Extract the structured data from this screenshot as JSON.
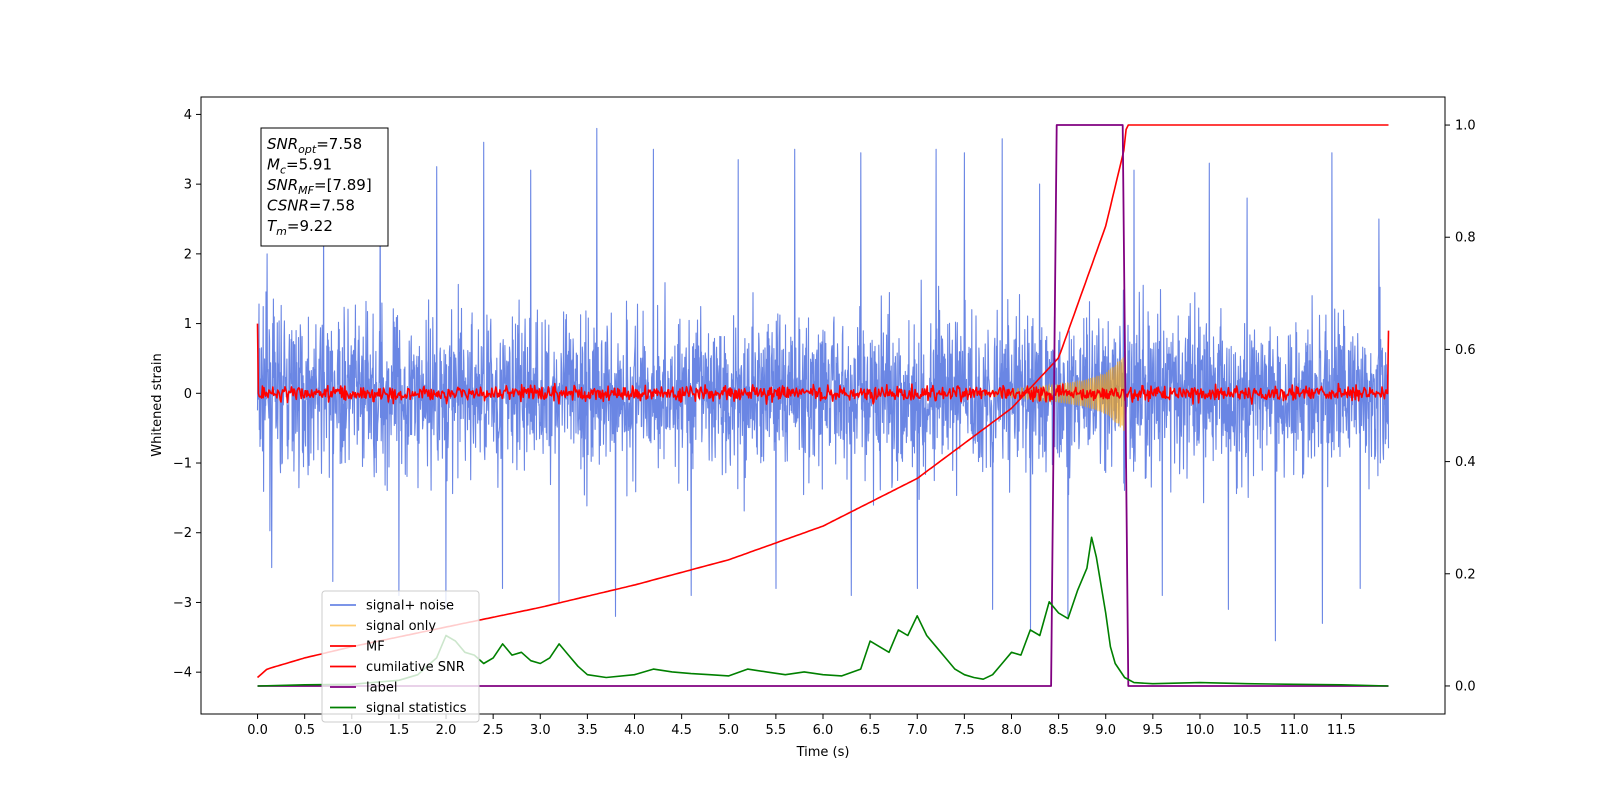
{
  "chart_data": {
    "type": "line",
    "xlabel": "Time (s)",
    "ylabel": "Whitened strain",
    "xlim": [
      -0.6,
      12.6
    ],
    "ylim": [
      -4.6,
      4.25
    ],
    "y2lim": [
      -0.05,
      1.05
    ],
    "x_ticks": [
      0.0,
      0.5,
      1.0,
      1.5,
      2.0,
      2.5,
      3.0,
      3.5,
      4.0,
      4.5,
      5.0,
      5.5,
      6.0,
      6.5,
      7.0,
      7.5,
      8.0,
      8.5,
      9.0,
      9.5,
      10.0,
      10.5,
      11.0,
      11.5
    ],
    "x_tick_labels": [
      "0.0",
      "0.5",
      "1.0",
      "1.5",
      "2.0",
      "2.5",
      "3.0",
      "3.5",
      "4.0",
      "4.5",
      "5.0",
      "5.5",
      "6.0",
      "6.5",
      "7.0",
      "7.5",
      "8.0",
      "8.5",
      "9.0",
      "9.5",
      "10.0",
      "10.5",
      "11.0",
      "11.5"
    ],
    "y_ticks": [
      -4,
      -3,
      -2,
      -1,
      0,
      1,
      2,
      3,
      4
    ],
    "y_tick_labels": [
      "−4",
      "−3",
      "−2",
      "−1",
      "0",
      "1",
      "2",
      "3",
      "4"
    ],
    "y2_ticks": [
      0.0,
      0.2,
      0.4,
      0.6,
      0.8,
      1.0
    ],
    "y2_tick_labels": [
      "0.0",
      "0.2",
      "0.4",
      "0.6",
      "0.8",
      "1.0"
    ],
    "legend_position": "lower-left",
    "series": [
      {
        "name": "signal+ noise",
        "axis": "left",
        "color": "#6a86e4",
        "kind": "noise-band",
        "x_range": [
          0.0,
          12.0
        ],
        "envelope_upper": [
          [
            0.0,
            1.5
          ],
          [
            12.0,
            1.5
          ]
        ],
        "envelope_lower": [
          [
            0.0,
            -1.5
          ],
          [
            12.0,
            -1.5
          ]
        ],
        "peak_spikes": [
          [
            0.1,
            2.0
          ],
          [
            0.7,
            2.6
          ],
          [
            1.3,
            3.45
          ],
          [
            1.9,
            3.25
          ],
          [
            2.4,
            3.6
          ],
          [
            2.9,
            3.2
          ],
          [
            3.6,
            3.8
          ],
          [
            4.2,
            3.5
          ],
          [
            5.1,
            3.35
          ],
          [
            5.7,
            3.5
          ],
          [
            6.4,
            3.45
          ],
          [
            7.2,
            3.5
          ],
          [
            7.5,
            3.45
          ],
          [
            7.9,
            3.65
          ],
          [
            8.3,
            3.0
          ],
          [
            9.3,
            3.2
          ],
          [
            10.1,
            3.3
          ],
          [
            10.5,
            2.8
          ],
          [
            11.4,
            3.45
          ],
          [
            11.9,
            2.5
          ]
        ],
        "trough_spikes": [
          [
            0.15,
            -2.5
          ],
          [
            0.8,
            -2.7
          ],
          [
            1.5,
            -2.9
          ],
          [
            2.0,
            -3.1
          ],
          [
            2.6,
            -2.8
          ],
          [
            3.2,
            -3.0
          ],
          [
            3.8,
            -3.2
          ],
          [
            4.6,
            -2.9
          ],
          [
            5.5,
            -2.8
          ],
          [
            6.3,
            -2.9
          ],
          [
            7.0,
            -2.8
          ],
          [
            7.8,
            -3.1
          ],
          [
            8.2,
            -3.4
          ],
          [
            8.6,
            -3.2
          ],
          [
            9.6,
            -2.9
          ],
          [
            10.3,
            -3.1
          ],
          [
            10.8,
            -3.55
          ],
          [
            11.3,
            -3.3
          ],
          [
            11.7,
            -2.8
          ]
        ]
      },
      {
        "name": "signal only",
        "axis": "left",
        "color": "#ffa500",
        "kind": "chirp",
        "x": [
          7.5,
          8.0,
          8.5,
          8.8,
          9.0,
          9.1,
          9.2
        ],
        "amplitude": [
          0.02,
          0.06,
          0.13,
          0.2,
          0.3,
          0.42,
          0.55
        ]
      },
      {
        "name": "MF",
        "axis": "left",
        "color": "#ff0000",
        "kind": "noise-band",
        "x_range": [
          0.0,
          12.0
        ],
        "envelope_upper": [
          [
            0.0,
            0.15
          ],
          [
            12.0,
            0.15
          ]
        ],
        "envelope_lower": [
          [
            0.0,
            -0.15
          ],
          [
            12.0,
            -0.15
          ]
        ],
        "edge_values": [
          [
            0.0,
            1.0
          ],
          [
            12.0,
            0.9
          ]
        ]
      },
      {
        "name": "cumilative SNR",
        "axis": "right",
        "color": "#ff0000",
        "kind": "line",
        "x": [
          0.0,
          0.1,
          0.5,
          1.0,
          2.0,
          3.0,
          4.0,
          5.0,
          6.0,
          7.0,
          8.0,
          8.5,
          9.0,
          9.2,
          9.22,
          12.0
        ],
        "y": [
          0.015,
          0.03,
          0.05,
          0.07,
          0.105,
          0.14,
          0.18,
          0.225,
          0.285,
          0.37,
          0.495,
          0.585,
          0.82,
          0.96,
          1.0,
          1.0
        ]
      },
      {
        "name": "label",
        "axis": "right",
        "color": "#800080",
        "kind": "step",
        "x": [
          0.0,
          8.42,
          8.48,
          9.18,
          9.24,
          12.0
        ],
        "y": [
          0.0,
          0.0,
          1.0,
          1.0,
          0.0,
          0.0
        ]
      },
      {
        "name": "signal statistics",
        "axis": "right",
        "color": "#008000",
        "kind": "line",
        "x": [
          0.0,
          0.5,
          1.0,
          1.5,
          1.7,
          1.9,
          2.0,
          2.1,
          2.2,
          2.3,
          2.4,
          2.5,
          2.6,
          2.7,
          2.8,
          2.9,
          3.0,
          3.1,
          3.2,
          3.3,
          3.4,
          3.5,
          3.7,
          4.0,
          4.2,
          4.4,
          4.6,
          4.8,
          5.0,
          5.2,
          5.4,
          5.6,
          5.8,
          6.0,
          6.2,
          6.4,
          6.5,
          6.6,
          6.7,
          6.8,
          6.9,
          7.0,
          7.1,
          7.2,
          7.3,
          7.4,
          7.5,
          7.6,
          7.7,
          7.8,
          7.9,
          8.0,
          8.1,
          8.2,
          8.3,
          8.35,
          8.4,
          8.5,
          8.6,
          8.7,
          8.8,
          8.85,
          8.9,
          9.0,
          9.05,
          9.1,
          9.2,
          9.3,
          9.5,
          10.0,
          10.5,
          11.0,
          11.5,
          12.0
        ],
        "y": [
          0.0,
          0.002,
          0.003,
          0.01,
          0.02,
          0.05,
          0.09,
          0.08,
          0.06,
          0.055,
          0.04,
          0.05,
          0.075,
          0.055,
          0.06,
          0.045,
          0.04,
          0.05,
          0.075,
          0.055,
          0.035,
          0.02,
          0.015,
          0.02,
          0.03,
          0.025,
          0.022,
          0.02,
          0.018,
          0.03,
          0.025,
          0.02,
          0.025,
          0.02,
          0.018,
          0.03,
          0.08,
          0.07,
          0.06,
          0.1,
          0.09,
          0.125,
          0.09,
          0.07,
          0.05,
          0.03,
          0.02,
          0.015,
          0.012,
          0.02,
          0.04,
          0.06,
          0.055,
          0.1,
          0.09,
          0.12,
          0.15,
          0.13,
          0.12,
          0.17,
          0.21,
          0.265,
          0.23,
          0.13,
          0.07,
          0.04,
          0.015,
          0.006,
          0.004,
          0.006,
          0.004,
          0.003,
          0.002,
          0.0
        ]
      }
    ],
    "info_box": {
      "lines": [
        {
          "var": "SNR",
          "sub": "opt",
          "value": "=7.58"
        },
        {
          "var": "M",
          "sub": "c",
          "value": "=5.91"
        },
        {
          "var": "SNR",
          "sub": "MF",
          "value": "=[7.89]"
        },
        {
          "var": "CSNR",
          "sub": "",
          "value": "=7.58"
        },
        {
          "var": "T",
          "sub": "m",
          "value": "=9.22"
        }
      ]
    }
  }
}
